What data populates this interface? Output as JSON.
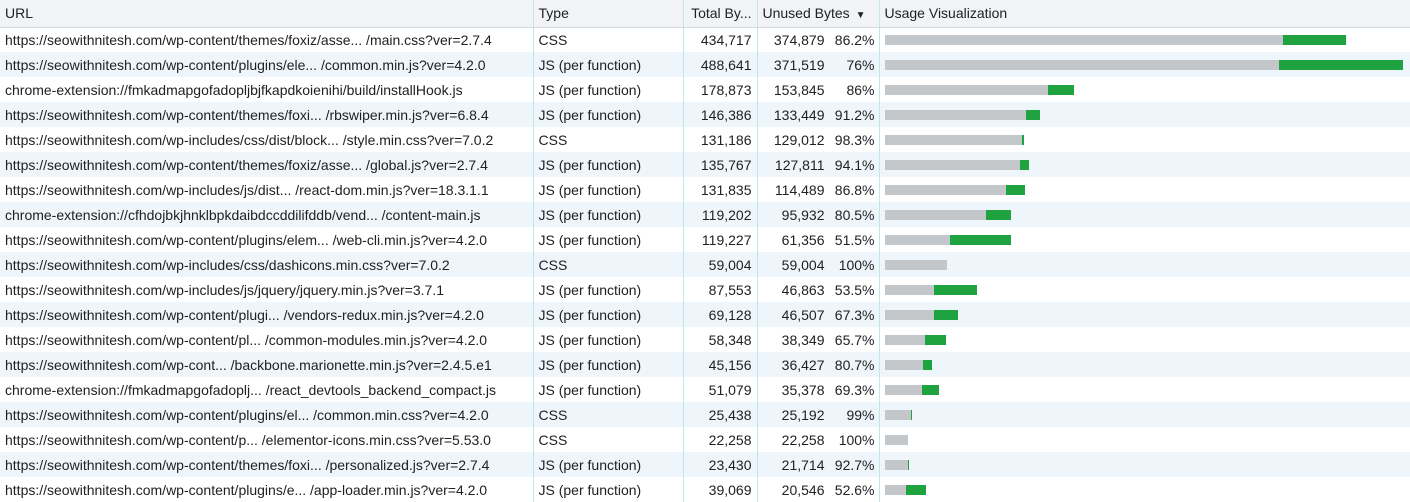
{
  "header": {
    "url": "URL",
    "type": "Type",
    "total": "Total By...",
    "unused": "Unused Bytes",
    "unused_sort_icon": "sort-descending-icon",
    "viz": "Usage Visualization"
  },
  "colors": {
    "unused": "#c3c7c9",
    "used": "#1fa340",
    "row_alt": "#eef6fb"
  },
  "rows": [
    {
      "url": "https://seowithnitesh.com/wp-content/themes/foxiz/asse... /main.css?ver=2.7.4",
      "type": "CSS",
      "total": "434,717",
      "unused": "374,879",
      "pct": "86.2%",
      "total_bytes": 434717,
      "unused_bytes": 374879
    },
    {
      "url": "https://seowithnitesh.com/wp-content/plugins/ele... /common.min.js?ver=4.2.0",
      "type": "JS (per function)",
      "total": "488,641",
      "unused": "371,519",
      "pct": "76%",
      "total_bytes": 488641,
      "unused_bytes": 371519
    },
    {
      "url": "chrome-extension://fmkadmapgofadopljbjfkapdkoienihi/build/installHook.js",
      "type": "JS (per function)",
      "total": "178,873",
      "unused": "153,845",
      "pct": "86%",
      "total_bytes": 178873,
      "unused_bytes": 153845
    },
    {
      "url": "https://seowithnitesh.com/wp-content/themes/foxi... /rbswiper.min.js?ver=6.8.4",
      "type": "JS (per function)",
      "total": "146,386",
      "unused": "133,449",
      "pct": "91.2%",
      "total_bytes": 146386,
      "unused_bytes": 133449
    },
    {
      "url": "https://seowithnitesh.com/wp-includes/css/dist/block... /style.min.css?ver=7.0.2",
      "type": "CSS",
      "total": "131,186",
      "unused": "129,012",
      "pct": "98.3%",
      "total_bytes": 131186,
      "unused_bytes": 129012
    },
    {
      "url": "https://seowithnitesh.com/wp-content/themes/foxiz/asse... /global.js?ver=2.7.4",
      "type": "JS (per function)",
      "total": "135,767",
      "unused": "127,811",
      "pct": "94.1%",
      "total_bytes": 135767,
      "unused_bytes": 127811
    },
    {
      "url": "https://seowithnitesh.com/wp-includes/js/dist... /react-dom.min.js?ver=18.3.1.1",
      "type": "JS (per function)",
      "total": "131,835",
      "unused": "114,489",
      "pct": "86.8%",
      "total_bytes": 131835,
      "unused_bytes": 114489
    },
    {
      "url": "chrome-extension://cfhdojbkjhnklbpkdaibdccddilifddb/vend... /content-main.js",
      "type": "JS (per function)",
      "total": "119,202",
      "unused": "95,932",
      "pct": "80.5%",
      "total_bytes": 119202,
      "unused_bytes": 95932
    },
    {
      "url": "https://seowithnitesh.com/wp-content/plugins/elem... /web-cli.min.js?ver=4.2.0",
      "type": "JS (per function)",
      "total": "119,227",
      "unused": "61,356",
      "pct": "51.5%",
      "total_bytes": 119227,
      "unused_bytes": 61356
    },
    {
      "url": "https://seowithnitesh.com/wp-includes/css/dashicons.min.css?ver=7.0.2",
      "type": "CSS",
      "total": "59,004",
      "unused": "59,004",
      "pct": "100%",
      "total_bytes": 59004,
      "unused_bytes": 59004
    },
    {
      "url": "https://seowithnitesh.com/wp-includes/js/jquery/jquery.min.js?ver=3.7.1",
      "type": "JS (per function)",
      "total": "87,553",
      "unused": "46,863",
      "pct": "53.5%",
      "total_bytes": 87553,
      "unused_bytes": 46863
    },
    {
      "url": "https://seowithnitesh.com/wp-content/plugi... /vendors-redux.min.js?ver=4.2.0",
      "type": "JS (per function)",
      "total": "69,128",
      "unused": "46,507",
      "pct": "67.3%",
      "total_bytes": 69128,
      "unused_bytes": 46507
    },
    {
      "url": "https://seowithnitesh.com/wp-content/pl... /common-modules.min.js?ver=4.2.0",
      "type": "JS (per function)",
      "total": "58,348",
      "unused": "38,349",
      "pct": "65.7%",
      "total_bytes": 58348,
      "unused_bytes": 38349
    },
    {
      "url": "https://seowithnitesh.com/wp-cont... /backbone.marionette.min.js?ver=2.4.5.e1",
      "type": "JS (per function)",
      "total": "45,156",
      "unused": "36,427",
      "pct": "80.7%",
      "total_bytes": 45156,
      "unused_bytes": 36427
    },
    {
      "url": "chrome-extension://fmkadmapgofadoplj... /react_devtools_backend_compact.js",
      "type": "JS (per function)",
      "total": "51,079",
      "unused": "35,378",
      "pct": "69.3%",
      "total_bytes": 51079,
      "unused_bytes": 35378
    },
    {
      "url": "https://seowithnitesh.com/wp-content/plugins/el... /common.min.css?ver=4.2.0",
      "type": "CSS",
      "total": "25,438",
      "unused": "25,192",
      "pct": "99%",
      "total_bytes": 25438,
      "unused_bytes": 25192
    },
    {
      "url": "https://seowithnitesh.com/wp-content/p... /elementor-icons.min.css?ver=5.53.0",
      "type": "CSS",
      "total": "22,258",
      "unused": "22,258",
      "pct": "100%",
      "total_bytes": 22258,
      "unused_bytes": 22258
    },
    {
      "url": "https://seowithnitesh.com/wp-content/themes/foxi... /personalized.js?ver=2.7.4",
      "type": "JS (per function)",
      "total": "23,430",
      "unused": "21,714",
      "pct": "92.7%",
      "total_bytes": 23430,
      "unused_bytes": 21714
    },
    {
      "url": "https://seowithnitesh.com/wp-content/plugins/e... /app-loader.min.js?ver=4.2.0",
      "type": "JS (per function)",
      "total": "39,069",
      "unused": "20,546",
      "pct": "52.6%",
      "total_bytes": 39069,
      "unused_bytes": 20546
    }
  ]
}
